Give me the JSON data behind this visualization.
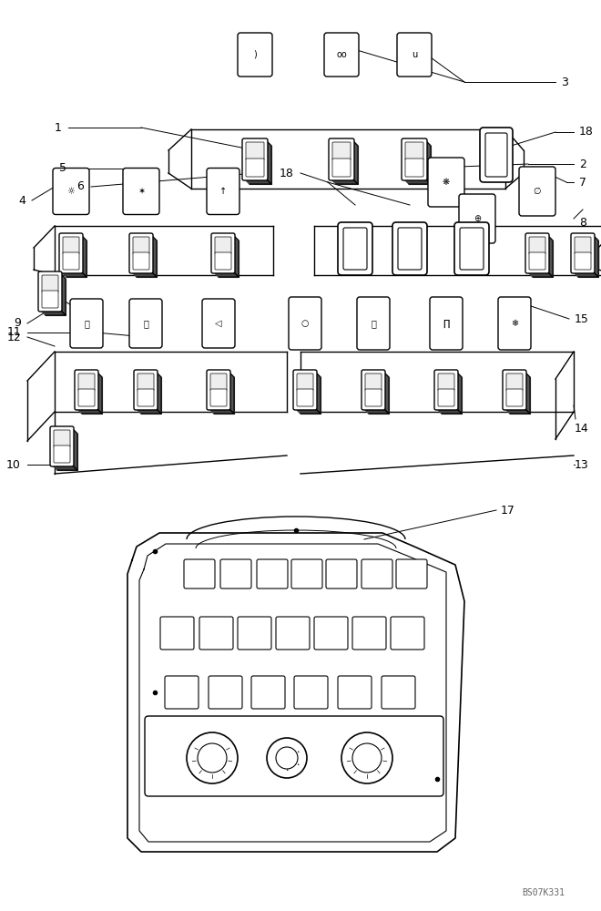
{
  "bg_color": "#ffffff",
  "line_color": "#000000",
  "fig_width": 6.6,
  "fig_height": 10.0,
  "watermark": "BS07K331"
}
